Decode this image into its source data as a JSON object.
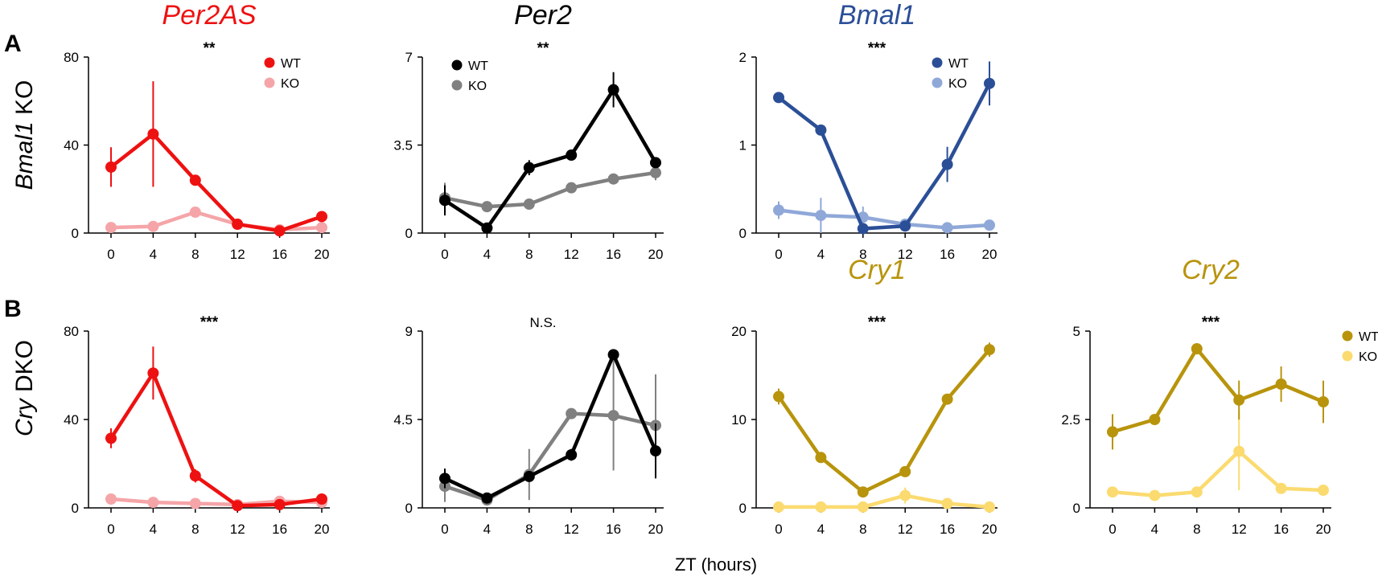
{
  "row_labels": [
    {
      "letter": "A",
      "italic": "Bmal1",
      "rest": " KO"
    },
    {
      "letter": "B",
      "italic": "Cry",
      "rest": " DKO"
    }
  ],
  "xlabel": "ZT (hours)",
  "chart_data": [
    {
      "id": "A-Per2AS",
      "type": "line",
      "row": 0,
      "col": 0,
      "title": "Per2AS",
      "title_color": "#ee1111",
      "significance": "**",
      "x": [
        0,
        4,
        8,
        12,
        16,
        20
      ],
      "ylim": [
        0,
        80
      ],
      "yticks": [
        "0",
        "40",
        "80"
      ],
      "ytick_values": [
        0,
        40,
        80
      ],
      "legend": true,
      "legend_pos": "top-right",
      "series": [
        {
          "name": "WT",
          "color": "#ee1111",
          "values": [
            30,
            45,
            24,
            4,
            1,
            7.5
          ],
          "errors": [
            9,
            24,
            2,
            1,
            1,
            1
          ]
        },
        {
          "name": "KO",
          "color": "#f5a5a8",
          "values": [
            2.5,
            3,
            9.5,
            4,
            1.5,
            2.5
          ],
          "errors": [
            1,
            1,
            1.5,
            1,
            0.5,
            1
          ]
        }
      ]
    },
    {
      "id": "A-Per2",
      "type": "line",
      "row": 0,
      "col": 1,
      "title": "Per2",
      "title_color": "#000000",
      "significance": "**",
      "x": [
        0,
        4,
        8,
        12,
        16,
        20
      ],
      "ylim": [
        0,
        7
      ],
      "yticks": [
        "0",
        "3.5",
        "7"
      ],
      "ytick_values": [
        0,
        3.5,
        7
      ],
      "legend": true,
      "legend_pos": "top-left",
      "series": [
        {
          "name": "WT",
          "color": "#000000",
          "values": [
            1.3,
            0.2,
            2.6,
            3.1,
            5.7,
            2.8
          ],
          "errors": [
            0.6,
            0.1,
            0.3,
            0.1,
            0.7,
            0.1
          ]
        },
        {
          "name": "KO",
          "color": "#808080",
          "values": [
            1.4,
            1.05,
            1.15,
            1.8,
            2.15,
            2.4
          ],
          "errors": [
            0.6,
            0.1,
            0.1,
            0.1,
            0.1,
            0.3
          ]
        }
      ]
    },
    {
      "id": "A-Bmal1",
      "type": "line",
      "row": 0,
      "col": 2,
      "title": "Bmal1",
      "title_color": "#2b4f97",
      "significance": "***",
      "x": [
        0,
        4,
        8,
        12,
        16,
        20
      ],
      "ylim": [
        0,
        2
      ],
      "yticks": [
        "0",
        "1",
        "2"
      ],
      "ytick_values": [
        0,
        1,
        2
      ],
      "legend": true,
      "legend_pos": "top-right",
      "series": [
        {
          "name": "WT",
          "color": "#2b4f97",
          "values": [
            1.54,
            1.17,
            0.05,
            0.08,
            0.78,
            1.7
          ],
          "errors": [
            0.03,
            0.03,
            0.02,
            0.02,
            0.2,
            0.25
          ]
        },
        {
          "name": "KO",
          "color": "#8fa8d8",
          "values": [
            0.26,
            0.2,
            0.18,
            0.1,
            0.06,
            0.09
          ],
          "errors": [
            0.1,
            0.2,
            0.12,
            0.03,
            0.02,
            0.06
          ]
        }
      ]
    },
    {
      "id": "B-Per2AS",
      "type": "line",
      "row": 1,
      "col": 0,
      "title": "",
      "title_color": "#ee1111",
      "significance": "***",
      "x": [
        0,
        4,
        8,
        12,
        16,
        20
      ],
      "ylim": [
        0,
        80
      ],
      "yticks": [
        "0",
        "40",
        "80"
      ],
      "ytick_values": [
        0,
        40,
        80
      ],
      "legend": false,
      "series": [
        {
          "name": "WT",
          "color": "#ee1111",
          "values": [
            31.5,
            61,
            14.5,
            1,
            1.5,
            4
          ],
          "errors": [
            4.5,
            12,
            3,
            1,
            1,
            1
          ]
        },
        {
          "name": "KO",
          "color": "#f5a5a8",
          "values": [
            4,
            2.5,
            2,
            1.5,
            3,
            2.5
          ],
          "errors": [
            1,
            1,
            1,
            1,
            1,
            1
          ]
        }
      ]
    },
    {
      "id": "B-Per2",
      "type": "line",
      "row": 1,
      "col": 1,
      "title": "",
      "title_color": "#000000",
      "significance": "N.S.",
      "x": [
        0,
        4,
        8,
        12,
        16,
        20
      ],
      "ylim": [
        0,
        9
      ],
      "yticks": [
        "0",
        "4.5",
        "9"
      ],
      "ytick_values": [
        0,
        4.5,
        9
      ],
      "legend": false,
      "series": [
        {
          "name": "WT",
          "color": "#000000",
          "values": [
            1.5,
            0.5,
            1.6,
            2.7,
            7.8,
            2.9
          ],
          "errors": [
            0.5,
            0.2,
            0.2,
            0.3,
            0.2,
            1.4
          ]
        },
        {
          "name": "KO",
          "color": "#808080",
          "values": [
            1.1,
            0.4,
            1.7,
            4.8,
            4.7,
            4.2
          ],
          "errors": [
            0.8,
            0.2,
            1.3,
            0.2,
            2.8,
            2.6
          ]
        }
      ]
    },
    {
      "id": "B-Cry1",
      "type": "line",
      "row": 1,
      "col": 2,
      "title": "Cry1",
      "title_color": "#b8940d",
      "significance": "***",
      "x": [
        0,
        4,
        8,
        12,
        16,
        20
      ],
      "ylim": [
        0,
        20
      ],
      "yticks": [
        "0",
        "10",
        "20"
      ],
      "ytick_values": [
        0,
        10,
        20
      ],
      "legend": false,
      "series": [
        {
          "name": "WT",
          "color": "#b8940d",
          "values": [
            12.6,
            5.7,
            1.8,
            4.1,
            12.3,
            17.9
          ],
          "errors": [
            0.9,
            0.4,
            0.4,
            0.6,
            0.6,
            0.8
          ]
        },
        {
          "name": "KO",
          "color": "#fbdb70",
          "values": [
            0.1,
            0.1,
            0.1,
            1.4,
            0.5,
            0.1
          ],
          "errors": [
            0.1,
            0.1,
            0.1,
            0.9,
            0.3,
            0.1
          ]
        }
      ]
    },
    {
      "id": "B-Cry2",
      "type": "line",
      "row": 1,
      "col": 3,
      "title": "Cry2",
      "title_color": "#b8940d",
      "significance": "***",
      "x": [
        0,
        4,
        8,
        12,
        16,
        20
      ],
      "ylim": [
        0,
        5
      ],
      "yticks": [
        "0",
        "2.5",
        "5"
      ],
      "ytick_values": [
        0,
        2.5,
        5
      ],
      "legend": true,
      "legend_pos": "right",
      "series": [
        {
          "name": "WT",
          "color": "#b8940d",
          "values": [
            2.15,
            2.5,
            4.5,
            3.05,
            3.5,
            3.0
          ],
          "errors": [
            0.5,
            0.15,
            0.1,
            0.55,
            0.5,
            0.6
          ]
        },
        {
          "name": "KO",
          "color": "#fbdb70",
          "values": [
            0.45,
            0.35,
            0.45,
            1.6,
            0.55,
            0.5
          ],
          "errors": [
            0.1,
            0.1,
            0.1,
            1.1,
            0.1,
            0.1
          ]
        }
      ]
    }
  ]
}
